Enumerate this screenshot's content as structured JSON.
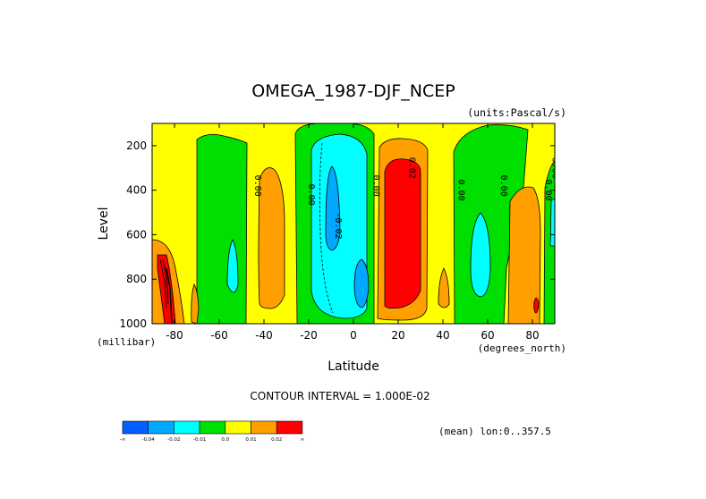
{
  "chart_data": {
    "type": "heatmap",
    "title": "OMEGA_1987-DJF_NCEP",
    "units": "(units:Pascal/s)",
    "xlabel": "Latitude",
    "x_units": "(degrees_north)",
    "ylabel": "Level",
    "y_units": "(millibar)",
    "xlim": [
      -90,
      90
    ],
    "ylim": [
      1000,
      100
    ],
    "x_ticks": [
      -80,
      -60,
      -40,
      -20,
      0,
      20,
      40,
      60,
      80
    ],
    "x_tick_labels": [
      "-80",
      "-60",
      "-40",
      "-20",
      "0",
      "20",
      "40",
      "60",
      "80"
    ],
    "y_ticks": [
      200,
      400,
      600,
      800,
      1000
    ],
    "y_tick_labels": [
      "200",
      "400",
      "600",
      "800",
      "1000"
    ],
    "contour_interval_text": "CONTOUR INTERVAL = 1.000E-02",
    "footer_text": "(mean) lon:0..357.5",
    "colorbar": {
      "colors": [
        "#0060ff",
        "#00a8ff",
        "#00ffff",
        "#00e000",
        "#ffff00",
        "#ffa000",
        "#ff0000"
      ],
      "labels": [
        "-∞",
        "-0.04",
        "-0.02",
        "-0.01",
        "0.0",
        "0.01",
        "0.02",
        "∞"
      ]
    },
    "contour_labels": [
      {
        "text": "0.00",
        "lat": -44,
        "lev": 380
      },
      {
        "text": "0.00",
        "lat": -20,
        "lev": 420
      },
      {
        "text": "-0.02",
        "lat": -8,
        "lev": 560
      },
      {
        "text": "0.00",
        "lat": 9,
        "lev": 380
      },
      {
        "text": "0.02",
        "lat": 25,
        "lev": 300
      },
      {
        "text": "0.00",
        "lat": 47,
        "lev": 400
      },
      {
        "text": "0.00",
        "lat": 66,
        "lev": 380
      },
      {
        "text": "0.00",
        "lat": 86,
        "lev": 400
      },
      {
        "text": "0.00",
        "lat": 89,
        "lev": 300
      }
    ],
    "regions": [
      {
        "value": -0.015,
        "center": [
          -55,
          600
        ],
        "radius": [
          4,
          300
        ]
      },
      {
        "value": 0.005,
        "center": [
          -40,
          640
        ],
        "radius": [
          7,
          380
        ]
      },
      {
        "value": -0.015,
        "center": [
          -9,
          560
        ],
        "radius": [
          10,
          320
        ]
      },
      {
        "value": -0.03,
        "center": [
          -10,
          500
        ],
        "radius": [
          3,
          230
        ]
      },
      {
        "value": -0.03,
        "center": [
          5,
          840
        ],
        "radius": [
          3,
          120
        ]
      },
      {
        "value": 0.015,
        "center": [
          22,
          600
        ],
        "radius": [
          12,
          460
        ]
      },
      {
        "value": 0.025,
        "center": [
          22,
          590
        ],
        "radius": [
          9,
          420
        ]
      },
      {
        "value": -0.015,
        "center": [
          56,
          700
        ],
        "radius": [
          3,
          230
        ]
      },
      {
        "value": 0.005,
        "center": [
          78,
          630
        ],
        "radius": [
          6,
          400
        ]
      },
      {
        "value": 0.005,
        "center": [
          -85,
          830
        ],
        "radius": [
          4,
          230
        ]
      },
      {
        "value": 0.025,
        "center": [
          -85,
          870
        ],
        "radius": [
          3,
          130
        ]
      }
    ]
  }
}
